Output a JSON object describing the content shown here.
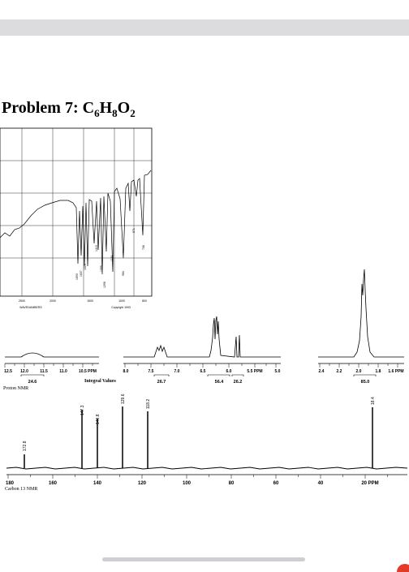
{
  "page": {
    "title_prefix": "Problem 7: ",
    "formula": {
      "c": "C",
      "c_n": "6",
      "h": "H",
      "h_n": "8",
      "o": "O",
      "o_n": "2"
    }
  },
  "ir": {
    "x_ticks": [
      "2500",
      "2000",
      "1500",
      "1000",
      "800"
    ],
    "x_label": "WAVENUMBERS",
    "copyright": "Copyright 1993",
    "peak_labels": [
      "1693",
      "1637",
      "1619",
      "1415",
      "1395",
      "1298",
      "1181",
      "984",
      "871",
      "708"
    ]
  },
  "proton": {
    "seg1_ticks": [
      "12.5",
      "12.0",
      "11.5",
      "11.0",
      "10.5 PPM"
    ],
    "seg2_ticks": [
      "8.0",
      "7.5",
      "7.0",
      "6.5",
      "6.0",
      "5.5 PPM",
      "5.0"
    ],
    "seg3_ticks": [
      "2.4",
      "2.2",
      "2.0",
      "1.8",
      "1.6 PPM"
    ],
    "integrals": [
      "24.6",
      "26.7",
      "56.4",
      "26.2",
      "85.0"
    ],
    "integral_title": "Integral Values",
    "caption": "Proton NMR"
  },
  "carbon": {
    "peaks": [
      "172.8",
      "147.3",
      "140.8",
      "129.6",
      "118.2",
      "18.4"
    ],
    "x_ticks": [
      "180",
      "160",
      "140",
      "120",
      "100",
      "80",
      "60",
      "40",
      "20 PPM"
    ],
    "caption": "Carbon 13 NMR"
  }
}
